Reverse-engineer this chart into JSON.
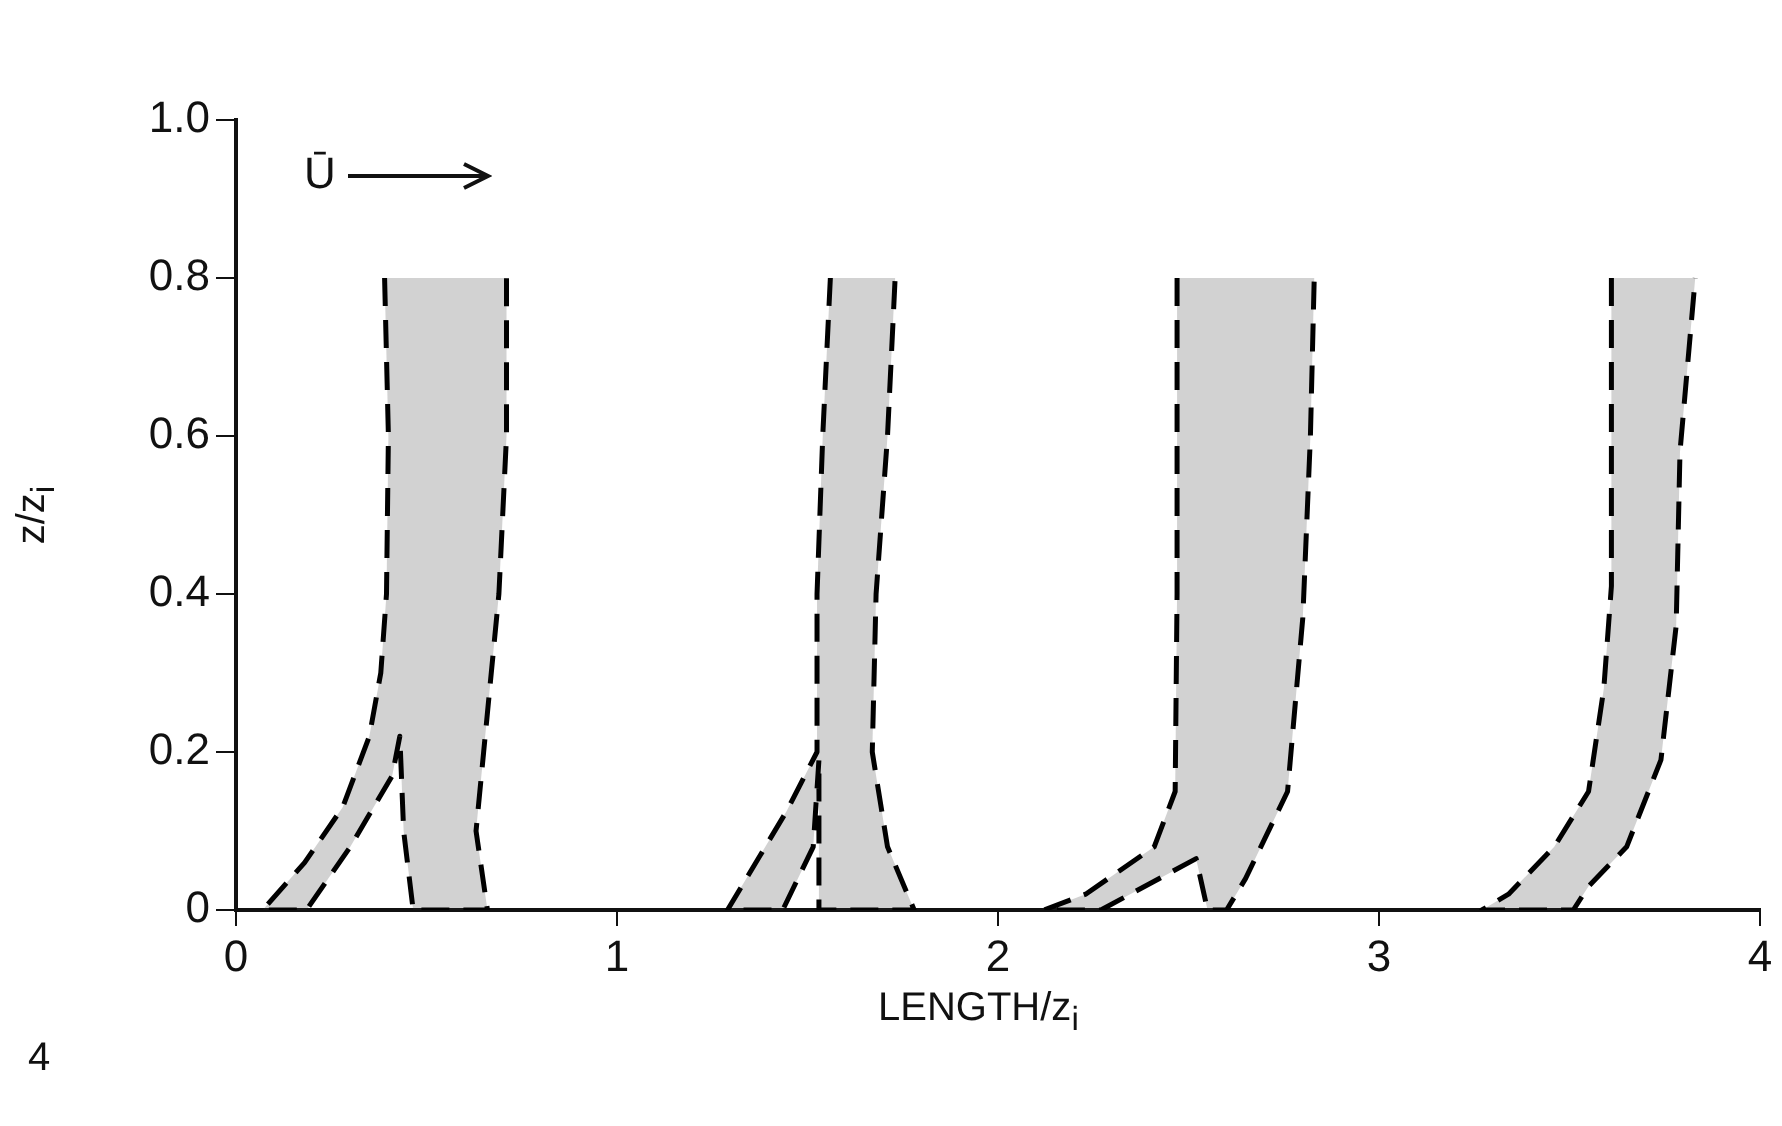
{
  "chart_data": {
    "type": "area",
    "xlabel": "LENGTH/z$_{i}$",
    "ylabel": "z/z$_{i}$",
    "xlim": [
      0,
      4
    ],
    "xticks": [
      0,
      1,
      2,
      3,
      4
    ],
    "ylim": [
      0,
      1
    ],
    "yticks": [
      0,
      0.2,
      0.4,
      0.6,
      0.8,
      {
        "value": 1,
        "label": "1.0"
      }
    ],
    "grid": false,
    "legend": false,
    "marker": "none",
    "line_style": "dashed",
    "annotations": [
      "Ū",
      "4"
    ],
    "series": [
      {
        "color": "#333333",
        "x": [
          0.39,
          0.4,
          0.395,
          0.38,
          0.35,
          0.28,
          0.18,
          0.07,
          0.185,
          0.3,
          0.41,
          0.43,
          0.44,
          0.465,
          0.66,
          0.63,
          0.65,
          0.69,
          0.71,
          0.71
        ],
        "values": [
          0.8,
          0.6,
          0.4,
          0.3,
          0.22,
          0.13,
          0.06,
          0,
          0,
          0.08,
          0.17,
          0.22,
          0.1,
          0,
          0,
          0.1,
          0.2,
          0.4,
          0.6,
          0.8
        ]
      },
      {
        "color": "#333333",
        "x": [
          1.56,
          1.54,
          1.525,
          1.525,
          1.445,
          1.29,
          1.435,
          1.515,
          1.53,
          1.53,
          1.78,
          1.71,
          1.67,
          1.68,
          1.71,
          1.73
        ],
        "values": [
          0.8,
          0.6,
          0.4,
          0.2,
          0.125,
          0,
          0,
          0.08,
          0.19,
          0,
          0,
          0.08,
          0.2,
          0.4,
          0.6,
          0.8
        ]
      },
      {
        "color": "#333333",
        "x": [
          2.47,
          2.47,
          2.465,
          2.41,
          2.23,
          2.12,
          2.27,
          2.52,
          2.55,
          2.6,
          2.65,
          2.76,
          2.8,
          2.82,
          2.83
        ],
        "values": [
          0.8,
          0.4,
          0.15,
          0.08,
          0.02,
          0,
          0,
          0.065,
          0,
          0,
          0.04,
          0.15,
          0.37,
          0.6,
          0.8
        ]
      },
      {
        "color": "#333333",
        "x": [
          3.61,
          3.61,
          3.59,
          3.55,
          3.46,
          3.34,
          3.27,
          3.51,
          3.55,
          3.65,
          3.74,
          3.78,
          3.79,
          3.83
        ],
        "values": [
          0.8,
          0.41,
          0.28,
          0.15,
          0.08,
          0.02,
          0,
          0,
          0.03,
          0.08,
          0.19,
          0.36,
          0.58,
          0.8
        ]
      }
    ]
  }
}
